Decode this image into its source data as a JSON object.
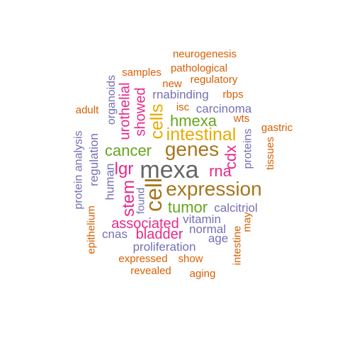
{
  "colors": {
    "orange": "#d95f02",
    "purple": "#7570b3",
    "pink": "#e7298a",
    "green": "#66a61e",
    "gold": "#e6ab02",
    "brown": "#a6761d",
    "gray": "#666666"
  },
  "words": [
    {
      "text": "neurogenesis",
      "color": "orange",
      "freq": 1
    },
    {
      "text": "pathological",
      "color": "orange",
      "freq": 1
    },
    {
      "text": "samples",
      "color": "orange",
      "freq": 1
    },
    {
      "text": "regulatory",
      "color": "orange",
      "freq": 1
    },
    {
      "text": "new",
      "color": "orange",
      "freq": 1
    },
    {
      "text": "rnabinding",
      "color": "purple",
      "freq": 2
    },
    {
      "text": "rbps",
      "color": "orange",
      "freq": 1
    },
    {
      "text": "adult",
      "color": "orange",
      "freq": 1
    },
    {
      "text": "isc",
      "color": "orange",
      "freq": 1
    },
    {
      "text": "carcinoma",
      "color": "purple",
      "freq": 2
    },
    {
      "text": "organoids",
      "color": "purple",
      "freq": 2
    },
    {
      "text": "urothelial",
      "color": "pink",
      "freq": 3
    },
    {
      "text": "showed",
      "color": "pink",
      "freq": 3
    },
    {
      "text": "wts",
      "color": "orange",
      "freq": 1
    },
    {
      "text": "gastric",
      "color": "orange",
      "freq": 1
    },
    {
      "text": "cells",
      "color": "gold",
      "freq": 4
    },
    {
      "text": "hmexa",
      "color": "green",
      "freq": 4
    },
    {
      "text": "intestinal",
      "color": "gold",
      "freq": 5
    },
    {
      "text": "protein analysis",
      "color": "purple",
      "freq": 2
    },
    {
      "text": "regulation",
      "color": "purple",
      "freq": 2
    },
    {
      "text": "proteins",
      "color": "purple",
      "freq": 2
    },
    {
      "text": "tissues",
      "color": "orange",
      "freq": 1
    },
    {
      "text": "cancer",
      "color": "green",
      "freq": 5
    },
    {
      "text": "genes",
      "color": "brown",
      "freq": 6
    },
    {
      "text": "cdx",
      "color": "pink",
      "freq": 3
    },
    {
      "text": "human",
      "color": "purple",
      "freq": 2
    },
    {
      "text": "lgr",
      "color": "pink",
      "freq": 3
    },
    {
      "text": "mexa",
      "color": "gray",
      "freq": 8
    },
    {
      "text": "rna",
      "color": "pink",
      "freq": 3
    },
    {
      "text": "cell",
      "color": "brown",
      "freq": 6
    },
    {
      "text": "expression",
      "color": "brown",
      "freq": 7
    },
    {
      "text": "epithelium",
      "color": "orange",
      "freq": 1
    },
    {
      "text": "stem",
      "color": "pink",
      "freq": 3
    },
    {
      "text": "found",
      "color": "purple",
      "freq": 2
    },
    {
      "text": "tumor",
      "color": "green",
      "freq": 4
    },
    {
      "text": "calcitriol",
      "color": "purple",
      "freq": 2
    },
    {
      "text": "vitamin",
      "color": "purple",
      "freq": 2
    },
    {
      "text": "associated",
      "color": "pink",
      "freq": 3
    },
    {
      "text": "intestine",
      "color": "orange",
      "freq": 1
    },
    {
      "text": "may",
      "color": "orange",
      "freq": 1
    },
    {
      "text": "normal",
      "color": "purple",
      "freq": 2
    },
    {
      "text": "cnas",
      "color": "purple",
      "freq": 2
    },
    {
      "text": "bladder",
      "color": "pink",
      "freq": 3
    },
    {
      "text": "age",
      "color": "purple",
      "freq": 2
    },
    {
      "text": "proliferation",
      "color": "purple",
      "freq": 2
    },
    {
      "text": "expressed",
      "color": "orange",
      "freq": 1
    },
    {
      "text": "show",
      "color": "orange",
      "freq": 1
    },
    {
      "text": "revealed",
      "color": "orange",
      "freq": 1
    },
    {
      "text": "aging",
      "color": "orange",
      "freq": 1
    }
  ]
}
